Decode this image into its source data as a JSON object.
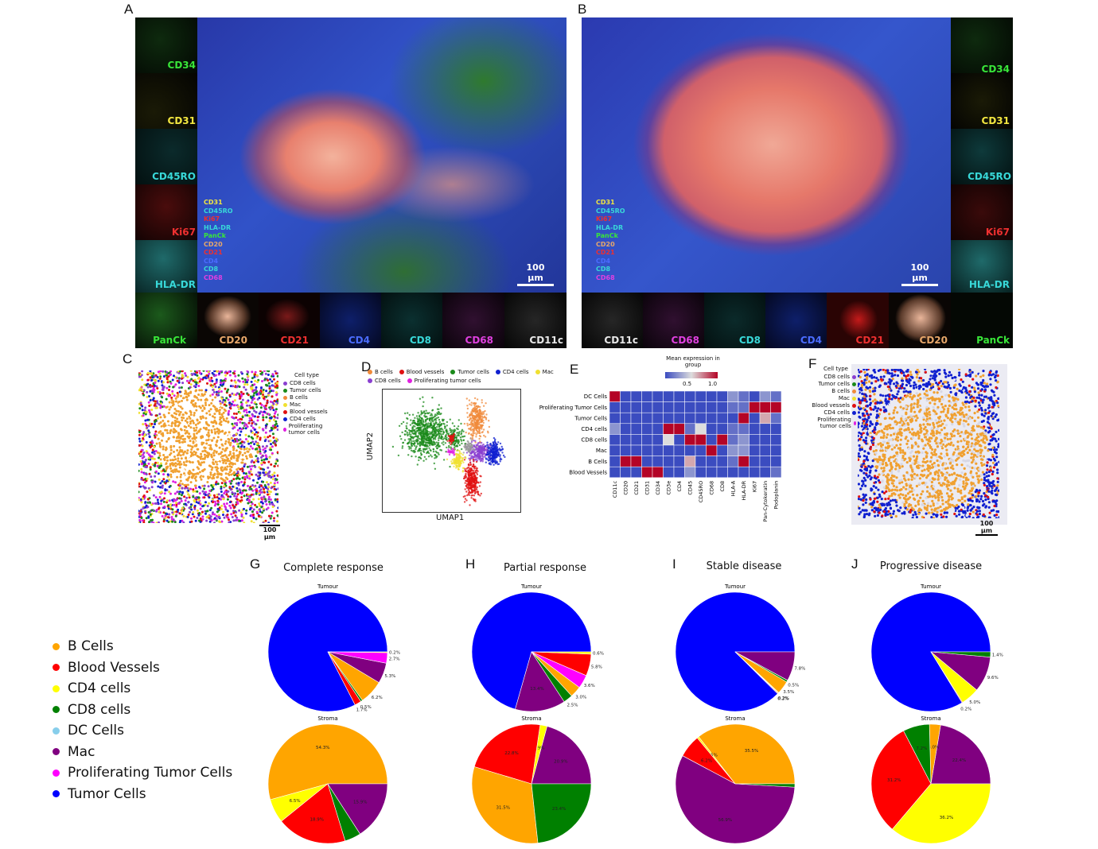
{
  "panels": {
    "A": "A",
    "B": "B",
    "C": "C",
    "D": "D",
    "E": "E",
    "F": "F",
    "G": "G",
    "H": "H",
    "I": "I",
    "J": "J"
  },
  "panel_a": {
    "side_labels": [
      {
        "text": "CD34",
        "color": "#39e639"
      },
      {
        "text": "CD31",
        "color": "#f2e640"
      },
      {
        "text": "CD45RO",
        "color": "#38d8d8"
      },
      {
        "text": "Ki67",
        "color": "#ee3030"
      },
      {
        "text": "HLA-DR",
        "color": "#38d8d8"
      }
    ],
    "bottom_labels": [
      {
        "text": "PanCk",
        "color": "#39e639"
      },
      {
        "text": "CD20",
        "color": "#e7a76a"
      },
      {
        "text": "CD21",
        "color": "#ee3030"
      },
      {
        "text": "CD4",
        "color": "#4a6cff"
      },
      {
        "text": "CD8",
        "color": "#38d8d8"
      },
      {
        "text": "CD68",
        "color": "#e040e0"
      },
      {
        "text": "CD11c",
        "color": "#e8e8e8"
      }
    ],
    "overlay_legend": [
      {
        "text": "CD31",
        "color": "#f2e640"
      },
      {
        "text": "CD45RO",
        "color": "#38d8d8"
      },
      {
        "text": "Ki67",
        "color": "#ee3030"
      },
      {
        "text": "HLA-DR",
        "color": "#38d8d8"
      },
      {
        "text": "PanCk",
        "color": "#39e639"
      },
      {
        "text": "CD20",
        "color": "#e7a76a"
      },
      {
        "text": "CD21",
        "color": "#ee3030"
      },
      {
        "text": "CD4",
        "color": "#4a6cff"
      },
      {
        "text": "CD8",
        "color": "#38d8d8"
      },
      {
        "text": "CD68",
        "color": "#e040e0"
      }
    ],
    "scale": "100 µm"
  },
  "panel_b": {
    "side_labels": [
      {
        "text": "CD34",
        "color": "#39e639"
      },
      {
        "text": "CD31",
        "color": "#f2e640"
      },
      {
        "text": "CD45RO",
        "color": "#38d8d8"
      },
      {
        "text": "Ki67",
        "color": "#ee3030"
      },
      {
        "text": "HLA-DR",
        "color": "#38d8d8"
      }
    ],
    "bottom_labels": [
      {
        "text": "CD11c",
        "color": "#e8e8e8"
      },
      {
        "text": "CD68",
        "color": "#e040e0"
      },
      {
        "text": "CD8",
        "color": "#38d8d8"
      },
      {
        "text": "CD4",
        "color": "#4a6cff"
      },
      {
        "text": "CD21",
        "color": "#ee3030"
      },
      {
        "text": "CD20",
        "color": "#e7a76a"
      },
      {
        "text": "PanCk",
        "color": "#39e639"
      }
    ],
    "overlay_legend": [
      {
        "text": "CD31",
        "color": "#f2e640"
      },
      {
        "text": "CD45RO",
        "color": "#38d8d8"
      },
      {
        "text": "Ki67",
        "color": "#ee3030"
      },
      {
        "text": "HLA-DR",
        "color": "#38d8d8"
      },
      {
        "text": "PanCk",
        "color": "#39e639"
      },
      {
        "text": "CD20",
        "color": "#e7a76a"
      },
      {
        "text": "CD21",
        "color": "#ee3030"
      },
      {
        "text": "CD4",
        "color": "#4a6cff"
      },
      {
        "text": "CD8",
        "color": "#38d8d8"
      },
      {
        "text": "CD68",
        "color": "#e040e0"
      }
    ],
    "scale": "100 µm"
  },
  "panel_c": {
    "legend_title": "Cell type",
    "legend": [
      {
        "text": "CD8 cells",
        "color": "#8a3fd0"
      },
      {
        "text": "Tumor cells",
        "color": "#1a8a1a"
      },
      {
        "text": "B cells",
        "color": "#f08a3a"
      },
      {
        "text": "Mac",
        "color": "#f0e030"
      },
      {
        "text": "Blood vessels",
        "color": "#e01010"
      },
      {
        "text": "CD4 cells",
        "color": "#1020d0"
      },
      {
        "text": "Proliferating tumor cells",
        "color": "#e020e0"
      }
    ],
    "scale": "100 µm"
  },
  "panel_d": {
    "legend": [
      {
        "text": "B cells",
        "color": "#f08a3a"
      },
      {
        "text": "Blood vessels",
        "color": "#e01010"
      },
      {
        "text": "Tumor cells",
        "color": "#1a8a1a"
      },
      {
        "text": "CD4 cells",
        "color": "#1020d0"
      },
      {
        "text": "Mac",
        "color": "#f0e030"
      },
      {
        "text": "CD8 cells",
        "color": "#8a3fd0"
      },
      {
        "text": "Proliferating tumor cells",
        "color": "#e020e0"
      }
    ],
    "xlabel": "UMAP1",
    "ylabel": "UMAP2"
  },
  "panel_e": {
    "cbar_title": "Mean expression in group",
    "cbar_ticks": [
      "0.5",
      "1.0"
    ]
  },
  "panel_f": {
    "legend_title": "Cell type",
    "legend": [
      {
        "text": "CD8 cells",
        "color": "#8a3fd0"
      },
      {
        "text": "Tumor cells",
        "color": "#1a8a1a"
      },
      {
        "text": "B cells",
        "color": "#f08a3a"
      },
      {
        "text": "Mac",
        "color": "#f0e030"
      },
      {
        "text": "Blood vessels",
        "color": "#e01010"
      },
      {
        "text": "CD4 cells",
        "color": "#1020d0"
      },
      {
        "text": "Proliferating tumor cells",
        "color": "#e020e0"
      }
    ],
    "scale": "100 µm"
  },
  "pie_titles": [
    "Complete response",
    "Partial response",
    "Stable disease",
    "Progressive disease"
  ],
  "pie_row_labels": [
    "Tumour",
    "Stroma"
  ],
  "colors": {
    "B Cells": "#ffa500",
    "Blood Vessels": "#ff0000",
    "CD4 cells": "#ffff00",
    "CD8 cells": "#008000",
    "DC Cells": "#87ceeb",
    "Mac": "#800080",
    "Proliferating Tumor Cells": "#ff00ff",
    "Tumor Cells": "#0000ff"
  },
  "main_legend": [
    {
      "text": "B Cells",
      "color": "#ffa500"
    },
    {
      "text": "Blood Vessels",
      "color": "#ff0000"
    },
    {
      "text": "CD4 cells",
      "color": "#ffff00"
    },
    {
      "text": "CD8 cells",
      "color": "#008000"
    },
    {
      "text": "DC Cells",
      "color": "#87ceeb"
    },
    {
      "text": "Mac",
      "color": "#800080"
    },
    {
      "text": "Proliferating Tumor Cells",
      "color": "#ff00ff"
    },
    {
      "text": "Tumor Cells",
      "color": "#0000ff"
    }
  ],
  "chart_data": [
    {
      "type": "heatmap",
      "title": "",
      "rows": [
        "DC Cells",
        "Proliferating Tumor Cells",
        "Tumor Cells",
        "CD4 cells",
        "CD8 cells",
        "Mac",
        "B Cells",
        "Blood Vessels"
      ],
      "columns": [
        "CD11c",
        "CD20",
        "CD21",
        "CD31",
        "CD34",
        "CD3e",
        "CD4",
        "CD45",
        "CD45RO",
        "CD68",
        "CD8",
        "HLA-A",
        "HLA-DR",
        "Ki67",
        "Pan-Cytokeratin",
        "Podoplanin"
      ],
      "values": [
        [
          1.0,
          0.2,
          0.2,
          0.2,
          0.2,
          0.2,
          0.2,
          0.2,
          0.2,
          0.2,
          0.2,
          0.4,
          0.3,
          0.2,
          0.4,
          0.3
        ],
        [
          0.2,
          0.2,
          0.2,
          0.2,
          0.2,
          0.2,
          0.2,
          0.2,
          0.2,
          0.2,
          0.2,
          0.3,
          0.3,
          1.0,
          1.0,
          1.0
        ],
        [
          0.2,
          0.2,
          0.2,
          0.2,
          0.2,
          0.2,
          0.2,
          0.2,
          0.2,
          0.2,
          0.2,
          0.2,
          1.0,
          0.2,
          0.7,
          0.3
        ],
        [
          0.4,
          0.2,
          0.2,
          0.2,
          0.2,
          1.0,
          1.0,
          0.3,
          0.6,
          0.2,
          0.2,
          0.3,
          0.3,
          0.2,
          0.2,
          0.2
        ],
        [
          0.2,
          0.2,
          0.2,
          0.2,
          0.2,
          0.6,
          0.2,
          1.0,
          1.0,
          0.2,
          1.0,
          0.3,
          0.4,
          0.2,
          0.2,
          0.2
        ],
        [
          0.2,
          0.2,
          0.2,
          0.2,
          0.2,
          0.2,
          0.2,
          0.2,
          0.2,
          1.0,
          0.2,
          0.4,
          0.4,
          0.2,
          0.2,
          0.2
        ],
        [
          0.2,
          1.0,
          1.0,
          0.2,
          0.2,
          0.2,
          0.2,
          0.7,
          0.2,
          0.2,
          0.2,
          0.3,
          1.0,
          0.2,
          0.2,
          0.2
        ],
        [
          0.2,
          0.2,
          0.2,
          1.0,
          1.0,
          0.2,
          0.2,
          0.4,
          0.2,
          0.2,
          0.2,
          0.2,
          0.2,
          0.2,
          0.2,
          0.3
        ]
      ]
    },
    {
      "type": "pie",
      "title": "Complete response",
      "subtitle": "Tumour",
      "labels": [
        "Tumor Cells",
        "Blood Vessels",
        "CD8 cells",
        "B Cells",
        "Mac",
        "Proliferating Tumor Cells",
        "CD4 cells"
      ],
      "values": [
        78.6,
        1.7,
        0.5,
        6.2,
        5.3,
        2.7,
        0.2
      ],
      "data_labels": [
        "",
        "1.7%",
        "0.5%",
        "6.2%",
        "5.3%",
        "2.7%",
        "0.2%"
      ]
    },
    {
      "type": "pie",
      "title": "Complete response",
      "subtitle": "Stroma",
      "labels": [
        "B Cells",
        "CD4 cells",
        "Blood Vessels",
        "CD8 cells",
        "Mac"
      ],
      "values": [
        54.3,
        6.5,
        18.9,
        4.4,
        15.9
      ],
      "data_labels": [
        "54.3%",
        "6.5%",
        "18.9%",
        "",
        "15.9%"
      ]
    },
    {
      "type": "pie",
      "title": "Partial response",
      "subtitle": "Tumour",
      "labels": [
        "Tumor Cells",
        "Mac",
        "CD8 cells",
        "B Cells",
        "Proliferating Tumor Cells",
        "Blood Vessels",
        "CD4 cells"
      ],
      "values": [
        69.4,
        13.4,
        2.5,
        3.0,
        3.6,
        5.8,
        0.6
      ],
      "data_labels": [
        "",
        "13.4%",
        "2.5%",
        "3.0%",
        "3.6%",
        "5.8%",
        "0.6%"
      ]
    },
    {
      "type": "pie",
      "title": "Partial response",
      "subtitle": "Stroma",
      "labels": [
        "Mac",
        "CD4 cells",
        "Blood Vessels",
        "B Cells",
        "CD8 cells"
      ],
      "values": [
        20.9,
        1.9,
        22.8,
        31.5,
        23.4
      ],
      "data_labels": [
        "20.9%",
        "1.9%",
        "22.8%",
        "31.5%",
        "23.4%"
      ]
    },
    {
      "type": "pie",
      "title": "Stable disease",
      "subtitle": "Tumour",
      "labels": [
        "Tumor Cells",
        "Blood Vessels",
        "CD4 cells",
        "B Cells",
        "CD8 cells",
        "Mac"
      ],
      "values": [
        86.3,
        0.2,
        0.2,
        3.5,
        0.5,
        7.8
      ],
      "data_labels": [
        "",
        "0.2%",
        "0.2%",
        "3.5%",
        "0.5%",
        "7.8%"
      ]
    },
    {
      "type": "pie",
      "title": "Stable disease",
      "subtitle": "Stroma",
      "labels": [
        "B Cells",
        "CD4 cells",
        "Blood Vessels",
        "Mac",
        "CD8 cells"
      ],
      "values": [
        35.5,
        0.5,
        6.2,
        56.9,
        0.9
      ],
      "data_labels": [
        "35.5%",
        "0.5%",
        "6.2%",
        "56.9%",
        ""
      ]
    },
    {
      "type": "pie",
      "title": "Progressive disease",
      "subtitle": "Tumour",
      "labels": [
        "Tumor Cells",
        "Blood Vessels",
        "CD4 cells",
        "Mac",
        "CD8 cells"
      ],
      "values": [
        83.4,
        0.2,
        5.0,
        9.6,
        1.4
      ],
      "data_labels": [
        "",
        "0.2%",
        "5.0%",
        "9.6%",
        "1.4%"
      ]
    },
    {
      "type": "pie",
      "title": "Progressive disease",
      "subtitle": "Stroma",
      "labels": [
        "Mac",
        "B Cells",
        "CD8 cells",
        "Blood Vessels",
        "CD4 cells"
      ],
      "values": [
        22.4,
        3.0,
        7.2,
        31.2,
        36.2
      ],
      "data_labels": [
        "22.4%",
        "3.0%",
        "7.2%",
        "31.2%",
        "36.2%"
      ]
    }
  ]
}
